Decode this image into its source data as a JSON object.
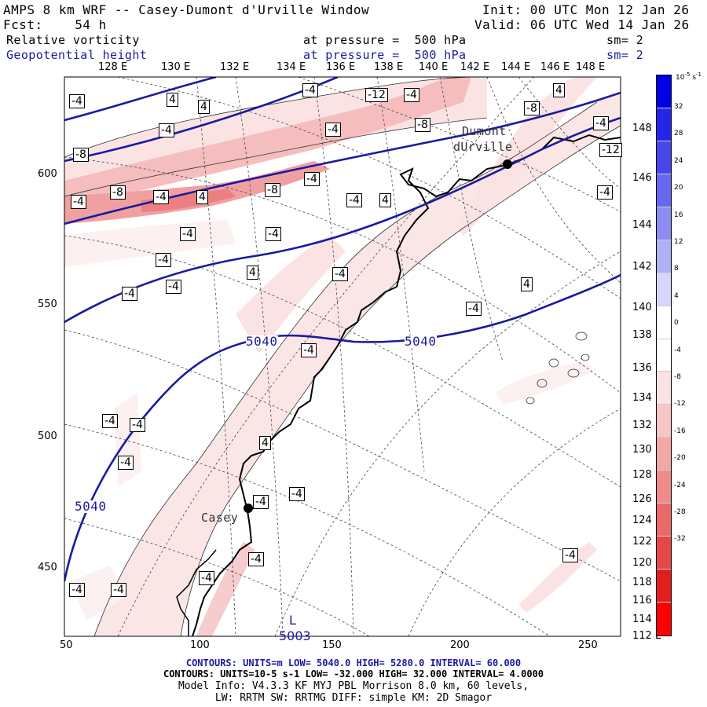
{
  "header": {
    "title": "AMPS 8 km WRF -- Casey-Dumont d'Urville Window",
    "init": "Init: 00 UTC Mon 12 Jan 26",
    "fcst": "Fcst:    54 h",
    "valid": "Valid: 06 UTC Wed 14 Jan 26"
  },
  "fields": [
    {
      "name": "Relative vorticity",
      "level": "at pressure =  500 hPa",
      "smooth": "sm= 2",
      "color": "#000000"
    },
    {
      "name": "Geopotential height",
      "level": "at pressure =  500 hPa",
      "smooth": "sm= 2",
      "color": "#1a1aa0"
    }
  ],
  "map": {
    "lon_labels_top": [
      "128 E",
      "130 E",
      "132 E",
      "134 E",
      "136 E",
      "138 E",
      "140 E",
      "142 E",
      "144 E",
      "146 E",
      "148 E"
    ],
    "lon_labels_right": [
      "148 E",
      "146 E",
      "144 E",
      "142 E",
      "140 E",
      "138 E",
      "136 E",
      "134 E",
      "132 E",
      "130 E",
      "128 E",
      "126 E",
      "124 E",
      "122 E",
      "120 E",
      "118 E",
      "116 E",
      "114 E",
      "112 E"
    ],
    "y_axis_ticks": [
      "600",
      "550",
      "500",
      "450"
    ],
    "x_axis_ticks": [
      "50",
      "100",
      "150",
      "200",
      "250"
    ],
    "stations": [
      {
        "name": "Dumont\ndUrville",
        "name_line1": "Dumont",
        "name_line2": "dUrville"
      },
      {
        "name": "Casey"
      }
    ],
    "geopotential_labels": [
      "5040",
      "5040",
      "5040"
    ],
    "low_marker": "L",
    "low_value_partial": "5003",
    "vorticity_labels": [
      "-4",
      "4",
      "4",
      "-4",
      "-12",
      "-4",
      "4",
      "-8",
      "-4",
      "-8",
      "-4",
      "-4",
      "-8",
      "-12",
      "-8",
      "-8",
      "-4",
      "-4",
      "4",
      "-4",
      "-4",
      "-4",
      "4",
      "-4",
      "-4",
      "-4",
      "4",
      "-4",
      "4",
      "-4",
      "-4",
      "-4",
      "-4",
      "-4",
      "-4",
      "4",
      "-4",
      "-4",
      "-4",
      "-4",
      "-4",
      "-4",
      "-4",
      "-4"
    ]
  },
  "colorbar": {
    "unit": "10-5 s-1",
    "unit_base": "10",
    "unit_exp": "-5",
    "unit_s": "s",
    "unit_sexp": "-1",
    "ticks": [
      "32",
      "28",
      "24",
      "20",
      "16",
      "12",
      "8",
      "4",
      "0",
      "-4",
      "-8",
      "-12",
      "-16",
      "-20",
      "-24",
      "-28",
      "-32"
    ],
    "colors": [
      "#0000e6",
      "#2525e8",
      "#4646ea",
      "#6868ee",
      "#8c8cf1",
      "#b0b0f5",
      "#d6d6fa",
      "#ffffff",
      "#ffffff",
      "#fbe3e3",
      "#f7c6c6",
      "#f3a8a8",
      "#ef8a8a",
      "#ea6a6a",
      "#e54646",
      "#e01e1e",
      "#ff0000"
    ]
  },
  "footer": {
    "line1": "CONTOURS:  UNITS=m  LOW=  5040.0       HIGH=  5280.0       INTERVAL=   60.000",
    "line2": "CONTOURS:  UNITS=10-5 s-1   LOW=  -32.000        HIGH=  32.000        INTERVAL=   4.0000",
    "line3": "Model Info: V4.3.3    KF       MYJ PBL  Morrison            8.0 km,  60 levels,",
    "line4": "LW: RRTM SW: RRTMG   DIFF: simple KM: 2D Smagor"
  }
}
